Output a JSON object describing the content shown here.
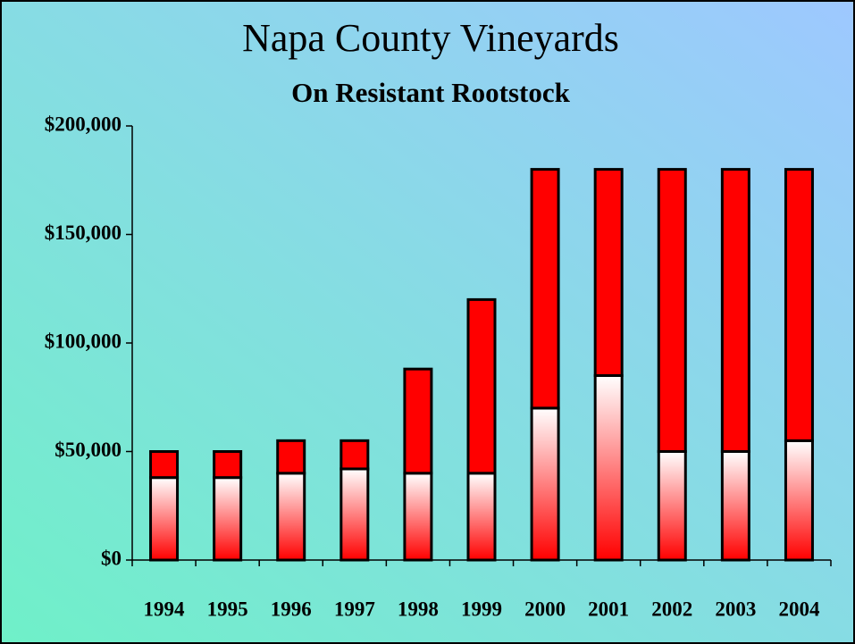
{
  "chart_data": {
    "type": "stacked_bar",
    "title": "Napa County Vineyards",
    "subtitle": "On Resistant Rootstock",
    "categories": [
      "1994",
      "1995",
      "1996",
      "1997",
      "1998",
      "1999",
      "2000",
      "2001",
      "2002",
      "2003",
      "2004"
    ],
    "series": [
      {
        "color": "#ff0000",
        "gradient_from": "#ffffff",
        "values": [
          38000,
          38000,
          40000,
          42000,
          40000,
          40000,
          70000,
          85000,
          50000,
          50000,
          55000
        ]
      },
      {
        "color": "#ff0000",
        "values": [
          12000,
          12000,
          15000,
          13000,
          48000,
          80000,
          110000,
          95000,
          130000,
          130000,
          125000
        ]
      }
    ],
    "ylim": [
      0,
      200000
    ],
    "yticks": [
      {
        "value": 0,
        "label": "$0"
      },
      {
        "value": 50000,
        "label": "$50,000"
      },
      {
        "value": 100000,
        "label": "$100,000"
      },
      {
        "value": 150000,
        "label": "$150,000"
      },
      {
        "value": 200000,
        "label": "$200,000"
      }
    ]
  }
}
